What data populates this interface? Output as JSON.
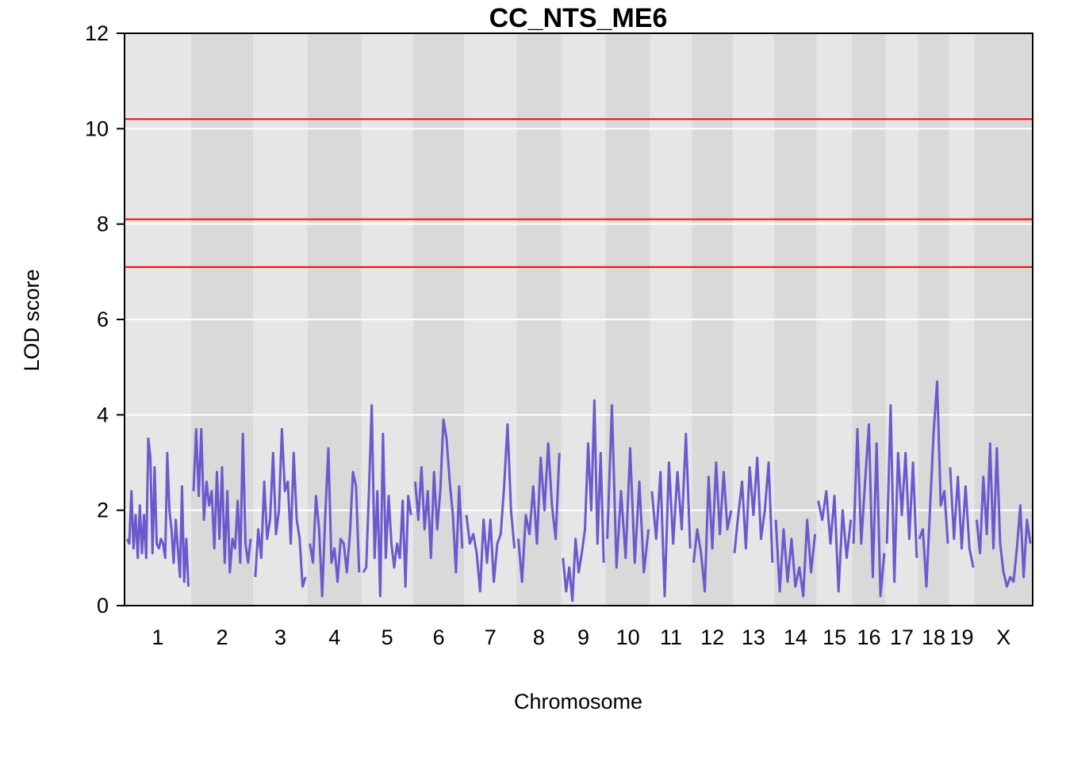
{
  "chart_data": {
    "type": "line",
    "title": "CC_NTS_ME6",
    "xlabel": "Chromosome",
    "ylabel": "LOD score",
    "ylim": [
      0,
      12
    ],
    "yticks": [
      0,
      2,
      4,
      6,
      8,
      10,
      12
    ],
    "grid": true,
    "background_bands": [
      "#e6e6e6",
      "#d9d9d9"
    ],
    "line_color": "#6a5acd",
    "threshold_color": "#ff0000",
    "thresholds": [
      10.2,
      8.1,
      7.1
    ],
    "chromosomes": [
      {
        "label": "1",
        "length": 195
      },
      {
        "label": "2",
        "length": 182
      },
      {
        "label": "3",
        "length": 160
      },
      {
        "label": "4",
        "length": 157
      },
      {
        "label": "5",
        "length": 152
      },
      {
        "label": "6",
        "length": 150
      },
      {
        "label": "7",
        "length": 153
      },
      {
        "label": "8",
        "length": 131
      },
      {
        "label": "9",
        "length": 130
      },
      {
        "label": "10",
        "length": 131
      },
      {
        "label": "11",
        "length": 122
      },
      {
        "label": "12",
        "length": 120
      },
      {
        "label": "13",
        "length": 121
      },
      {
        "label": "14",
        "length": 125
      },
      {
        "label": "15",
        "length": 104
      },
      {
        "label": "16",
        "length": 98
      },
      {
        "label": "17",
        "length": 95
      },
      {
        "label": "18",
        "length": 91
      },
      {
        "label": "19",
        "length": 74
      },
      {
        "label": "X",
        "length": 171
      }
    ],
    "series": [
      {
        "chromosome_values": [
          [
            1.4,
            1.3,
            2.4,
            1.2,
            1.9,
            1.0,
            2.1,
            1.1,
            1.9,
            1.0,
            3.5,
            3.1,
            1.1,
            2.9,
            1.3,
            1.2,
            1.4,
            1.3,
            1.0,
            3.2,
            2.0,
            1.6,
            0.9,
            1.8,
            1.2,
            0.6,
            2.5,
            0.5,
            1.4,
            0.4
          ],
          [
            2.4,
            3.7,
            2.3,
            3.7,
            1.8,
            2.6,
            2.1,
            2.4,
            1.2,
            2.8,
            1.4,
            2.9,
            0.9,
            2.4,
            0.7,
            1.4,
            1.2,
            2.2,
            0.9,
            3.6,
            1.3,
            0.9,
            1.4
          ],
          [
            0.6,
            1.6,
            1.0,
            2.6,
            1.4,
            1.8,
            3.2,
            1.5,
            2.0,
            3.7,
            2.4,
            2.6,
            1.3,
            3.2,
            1.8,
            1.4,
            0.4,
            0.6
          ],
          [
            1.3,
            0.9,
            2.3,
            1.6,
            0.2,
            1.9,
            3.3,
            0.9,
            1.2,
            0.5,
            1.4,
            1.3,
            0.7,
            1.5,
            2.8,
            2.5,
            0.7
          ],
          [
            0.7,
            0.8,
            2.4,
            4.2,
            1.0,
            2.4,
            0.2,
            3.6,
            1.0,
            2.3,
            1.3,
            0.8,
            1.3,
            1.0,
            2.2,
            0.4,
            2.3,
            1.9
          ],
          [
            2.6,
            1.8,
            2.9,
            1.6,
            2.4,
            1.0,
            2.8,
            1.6,
            2.4,
            3.9,
            3.5,
            2.6,
            1.9,
            0.7,
            2.5,
            1.2
          ],
          [
            1.9,
            1.3,
            1.5,
            1.1,
            0.3,
            1.8,
            0.9,
            1.8,
            0.5,
            1.3,
            1.5,
            2.5,
            3.8,
            2.0,
            1.2
          ],
          [
            1.4,
            0.5,
            1.9,
            1.5,
            2.5,
            1.3,
            3.1,
            2.0,
            3.4,
            2.1,
            1.4,
            3.2
          ],
          [
            1.0,
            0.3,
            0.8,
            0.1,
            1.4,
            0.7,
            1.1,
            1.6,
            3.4,
            2.0,
            4.3,
            1.3,
            3.2,
            0.9
          ],
          [
            1.4,
            4.2,
            0.8,
            2.4,
            1.0,
            3.3,
            0.9,
            2.6,
            0.7,
            1.6
          ],
          [
            2.4,
            1.4,
            2.8,
            0.2,
            3.0,
            1.3,
            2.8,
            1.6,
            3.6,
            1.2
          ],
          [
            0.9,
            1.6,
            1.1,
            0.3,
            2.7,
            1.2,
            3.0,
            1.5,
            2.8,
            1.6,
            2.0
          ],
          [
            1.1,
            1.9,
            2.6,
            1.2,
            2.9,
            1.9,
            3.1,
            1.4,
            2.0,
            3.0,
            0.9
          ],
          [
            1.8,
            0.3,
            1.6,
            0.5,
            1.4,
            0.4,
            0.8,
            0.2,
            1.8,
            0.7,
            1.5
          ],
          [
            2.2,
            1.8,
            2.4,
            1.3,
            2.3,
            0.3,
            2.0,
            1.0,
            1.8
          ],
          [
            1.3,
            3.7,
            1.3,
            2.6,
            3.8,
            0.6,
            3.4,
            0.2,
            1.1
          ],
          [
            1.3,
            4.2,
            0.5,
            3.2,
            1.9,
            3.2,
            1.4,
            3.0,
            1.0
          ],
          [
            1.4,
            1.6,
            0.4,
            2.0,
            3.6,
            4.7,
            2.1,
            2.4,
            1.3
          ],
          [
            2.9,
            1.4,
            2.7,
            1.2,
            2.5,
            1.2,
            0.8
          ],
          [
            1.8,
            1.1,
            2.7,
            1.5,
            3.4,
            1.2,
            3.3,
            1.3,
            0.7,
            0.4,
            0.6,
            0.5,
            1.2,
            2.1,
            0.6,
            1.8,
            1.3
          ]
        ]
      }
    ]
  }
}
